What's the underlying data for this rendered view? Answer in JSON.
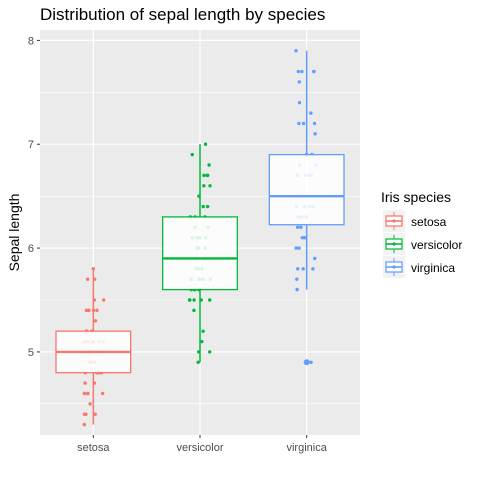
{
  "chart_data": {
    "type": "boxplot",
    "title": "Distribution of sepal length by species",
    "xlabel": "",
    "ylabel": "Sepal length",
    "ylim": [
      4.2,
      8.1
    ],
    "yticks": [
      5,
      6,
      7,
      8
    ],
    "grid": true,
    "legend": {
      "title": "Iris species",
      "position": "right"
    },
    "categories": [
      "setosa",
      "versicolor",
      "virginica"
    ],
    "series": [
      {
        "name": "setosa",
        "color": "#F8766D",
        "stats": {
          "min": 4.3,
          "q1": 4.8,
          "median": 5.0,
          "q3": 5.2,
          "max": 5.8
        },
        "outliers": [],
        "points": [
          5.1,
          4.9,
          4.7,
          4.6,
          5.0,
          5.4,
          4.6,
          5.0,
          4.4,
          4.9,
          5.4,
          4.8,
          4.8,
          4.3,
          5.8,
          5.7,
          5.4,
          5.1,
          5.7,
          5.1,
          5.4,
          5.1,
          4.6,
          5.1,
          4.8,
          5.0,
          5.0,
          5.2,
          5.2,
          4.7,
          4.8,
          5.4,
          5.2,
          5.5,
          4.9,
          5.0,
          5.5,
          4.9,
          4.4,
          5.1,
          5.0,
          4.5,
          4.4,
          5.0,
          5.1,
          4.8,
          5.1,
          4.6,
          5.3,
          5.0
        ]
      },
      {
        "name": "versicolor",
        "color": "#00BA38",
        "stats": {
          "min": 4.9,
          "q1": 5.6,
          "median": 5.9,
          "q3": 6.3,
          "max": 7.0
        },
        "outliers": [],
        "points": [
          7.0,
          6.4,
          6.9,
          5.5,
          6.5,
          5.7,
          6.3,
          4.9,
          6.6,
          5.2,
          5.0,
          5.9,
          6.0,
          6.1,
          5.6,
          6.7,
          5.6,
          5.8,
          6.2,
          5.6,
          5.9,
          6.1,
          6.3,
          6.1,
          6.4,
          6.6,
          6.8,
          6.7,
          6.0,
          5.7,
          5.5,
          5.5,
          5.8,
          6.0,
          5.4,
          6.0,
          6.7,
          6.3,
          5.6,
          5.5,
          5.5,
          6.1,
          5.8,
          5.0,
          5.6,
          5.7,
          5.7,
          6.2,
          5.1,
          5.7
        ]
      },
      {
        "name": "virginica",
        "color": "#619CFF",
        "stats": {
          "min": 5.6,
          "q1": 6.225,
          "median": 6.5,
          "q3": 6.9,
          "max": 7.9
        },
        "outliers": [
          4.9
        ],
        "points": [
          6.3,
          5.8,
          7.1,
          6.3,
          6.5,
          7.6,
          4.9,
          7.3,
          6.7,
          7.2,
          6.5,
          6.4,
          6.8,
          5.7,
          5.8,
          6.4,
          6.5,
          7.7,
          7.7,
          6.0,
          6.9,
          5.6,
          7.7,
          6.3,
          6.7,
          7.2,
          6.2,
          6.1,
          6.4,
          7.2,
          7.4,
          7.9,
          6.4,
          6.3,
          6.1,
          7.7,
          6.3,
          6.4,
          6.0,
          6.9,
          6.7,
          6.9,
          5.8,
          6.8,
          6.7,
          6.7,
          6.3,
          6.5,
          6.2,
          5.9
        ]
      }
    ]
  }
}
